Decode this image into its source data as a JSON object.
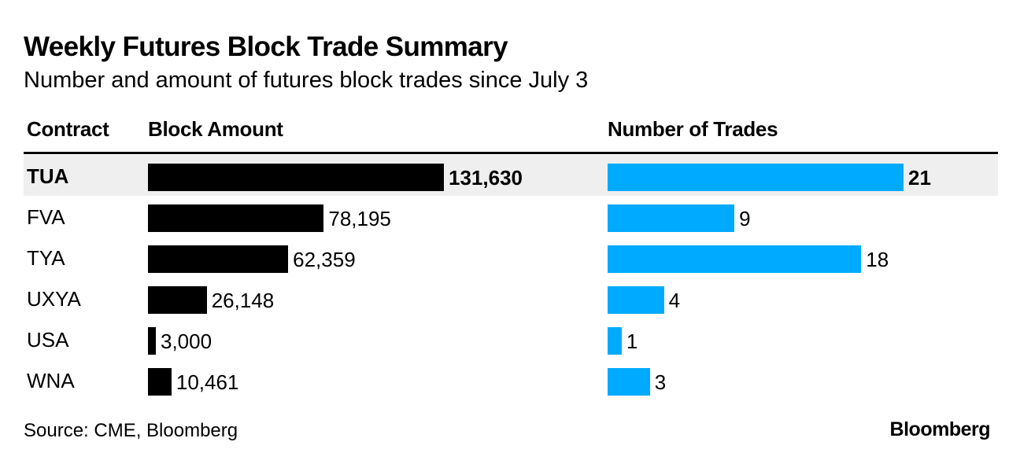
{
  "title": "Weekly Futures Block Trade Summary",
  "subtitle": "Number and amount of futures block trades since July 3",
  "headers": {
    "contract": "Contract",
    "amount": "Block Amount",
    "trades": "Number of Trades"
  },
  "source": "Source: CME, Bloomberg",
  "brand": "Bloomberg",
  "colors": {
    "amount_bar": "#000000",
    "trades_bar": "#00aaff",
    "highlight_row": "#efefef"
  },
  "chart_data": {
    "type": "bar",
    "orientation": "horizontal",
    "categories": [
      "TUA",
      "FVA",
      "TYA",
      "UXYA",
      "USA",
      "WNA"
    ],
    "highlighted_category": "TUA",
    "series": [
      {
        "name": "Block Amount",
        "values": [
          131630,
          78195,
          62359,
          26148,
          3000,
          10461
        ],
        "labels": [
          "131,630",
          "78,195",
          "62,359",
          "26,148",
          "3,000",
          "10,461"
        ]
      },
      {
        "name": "Number of Trades",
        "values": [
          21,
          9,
          18,
          4,
          1,
          3
        ],
        "labels": [
          "21",
          "9",
          "18",
          "4",
          "1",
          "3"
        ]
      }
    ]
  }
}
